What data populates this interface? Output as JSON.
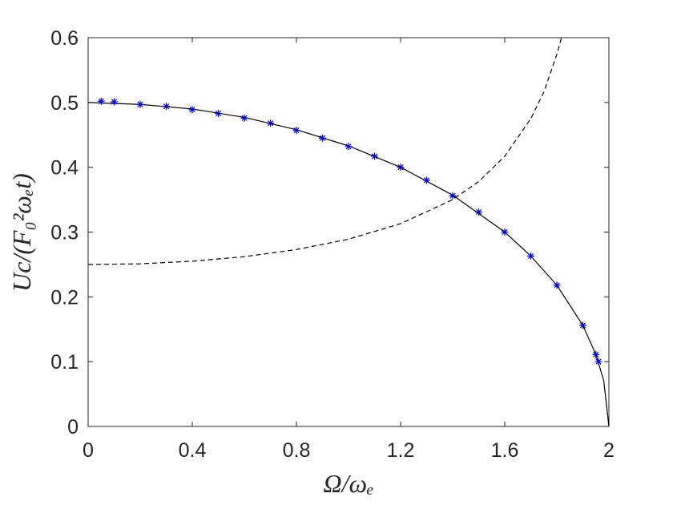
{
  "chart_data": {
    "type": "line",
    "xlabel": "Ω/ωₑ",
    "ylabel": "Uc/(F₀²ωₑt)",
    "xlim": [
      0,
      2
    ],
    "xticks": [
      0,
      0.4,
      0.8,
      1.2,
      1.6,
      2
    ],
    "ylim": [
      0,
      0.6
    ],
    "yticks": [
      0,
      0.1,
      0.2,
      0.3,
      0.4,
      0.5,
      0.6
    ],
    "grid": false,
    "series": [
      {
        "color": "#000000",
        "line_style": "solid",
        "x": [
          0,
          0.2,
          0.4,
          0.6,
          0.8,
          1.0,
          1.2,
          1.4,
          1.6,
          1.7,
          1.8,
          1.9,
          1.95,
          1.98,
          2.0
        ],
        "values": [
          0.5,
          0.497,
          0.49,
          0.477,
          0.458,
          0.433,
          0.4,
          0.357,
          0.3,
          0.263,
          0.218,
          0.156,
          0.111,
          0.071,
          0
        ]
      },
      {
        "color": "#000000",
        "line_style": "dashed",
        "x": [
          0,
          0.2,
          0.4,
          0.6,
          0.8,
          1.0,
          1.2,
          1.4,
          1.5,
          1.6,
          1.7,
          1.75,
          1.8,
          1.818
        ],
        "values": [
          0.25,
          0.251,
          0.255,
          0.262,
          0.273,
          0.289,
          0.313,
          0.35,
          0.378,
          0.417,
          0.475,
          0.516,
          0.574,
          0.6
        ]
      },
      {
        "color": "#0000cc",
        "line_style": "none",
        "marker": "asterisk",
        "x": [
          0.05,
          0.1,
          0.2,
          0.3,
          0.4,
          0.5,
          0.6,
          0.7,
          0.8,
          0.9,
          1.0,
          1.1,
          1.2,
          1.3,
          1.4,
          1.5,
          1.6,
          1.7,
          1.8,
          1.9,
          1.95,
          1.96
        ],
        "values": [
          0.502,
          0.501,
          0.497,
          0.494,
          0.489,
          0.483,
          0.476,
          0.468,
          0.457,
          0.445,
          0.432,
          0.417,
          0.4,
          0.38,
          0.356,
          0.331,
          0.3,
          0.263,
          0.218,
          0.156,
          0.111,
          0.1
        ]
      }
    ]
  }
}
